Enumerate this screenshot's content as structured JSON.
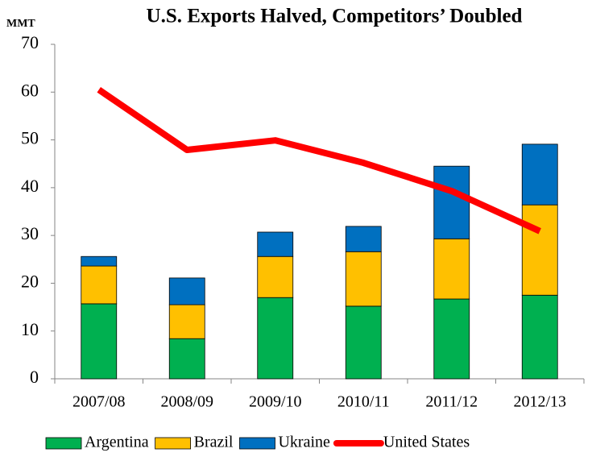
{
  "chart_data": {
    "type": "bar",
    "stacked": true,
    "title": "U.S. Exports Halved, Competitors’ Doubled",
    "y_label": "MMT",
    "categories": [
      "2007/08",
      "2008/09",
      "2009/10",
      "2010/11",
      "2011/12",
      "2012/13"
    ],
    "series": [
      {
        "name": "Argentina",
        "color": "#00b050",
        "values": [
          15.7,
          8.4,
          17.0,
          15.2,
          16.7,
          17.5
        ]
      },
      {
        "name": "Brazil",
        "color": "#ffc000",
        "values": [
          7.9,
          7.1,
          8.6,
          11.4,
          12.6,
          18.9
        ]
      },
      {
        "name": "Ukraine",
        "color": "#0070c0",
        "values": [
          2.0,
          5.6,
          5.1,
          5.3,
          15.2,
          12.7
        ]
      },
      {
        "name": "United States",
        "color": "#ff0000",
        "type": "line",
        "values": [
          60.5,
          47.9,
          49.9,
          45.2,
          39.3,
          30.9
        ]
      }
    ],
    "ylim": [
      0,
      70
    ],
    "yticks": [
      0,
      10,
      20,
      30,
      40,
      50,
      60,
      70
    ],
    "legend": "bottom"
  }
}
